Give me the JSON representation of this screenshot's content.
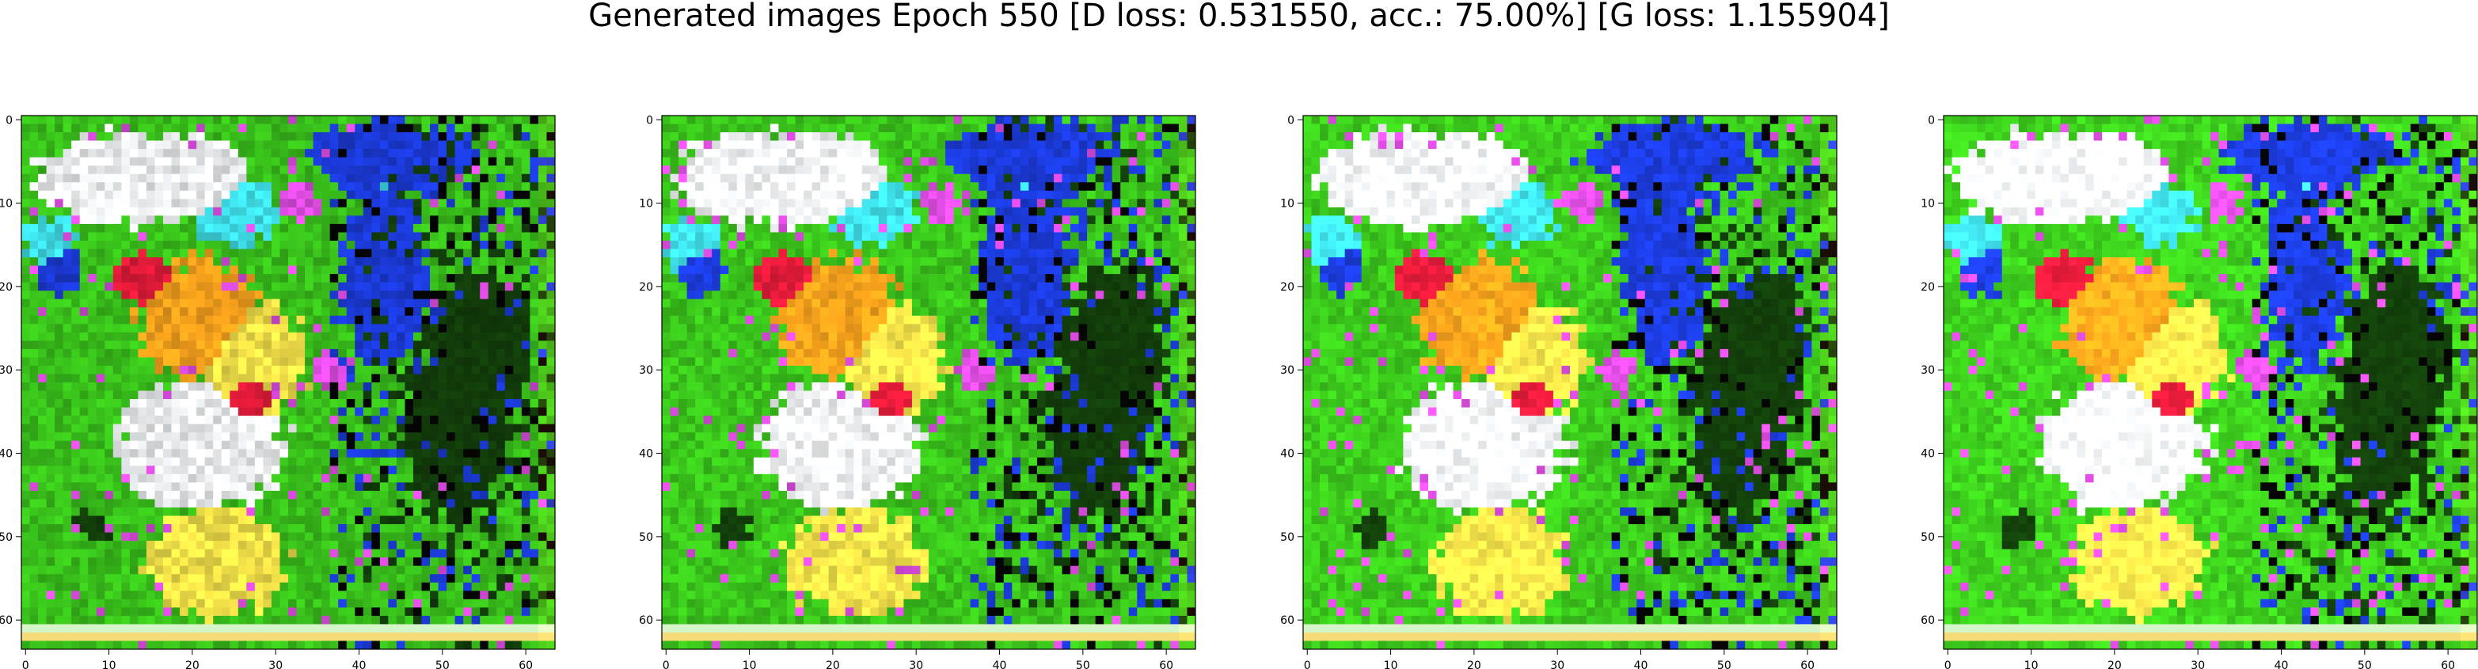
{
  "figure": {
    "title": "Generated images Epoch 550 [D loss: 0.531550, acc.: 75.00%] [G loss: 1.155904]"
  },
  "axes": {
    "tick_labels": [
      "0",
      "10",
      "20",
      "30",
      "40",
      "50",
      "60"
    ],
    "tick_values": [
      0,
      10,
      20,
      30,
      40,
      50,
      60
    ],
    "image_size": 64,
    "count": 4
  },
  "colors": {
    "axis": "#000000",
    "green": "#39c11b",
    "dark_green": "#123d0a",
    "blue": "#1b3ad7",
    "cyan": "#3fe0ea",
    "white": "#f2f5f7",
    "yellow": "#f6e44a",
    "orange": "#f6a11c",
    "red": "#e51b3a",
    "magenta": "#df4ce3",
    "black": "#050505"
  }
}
